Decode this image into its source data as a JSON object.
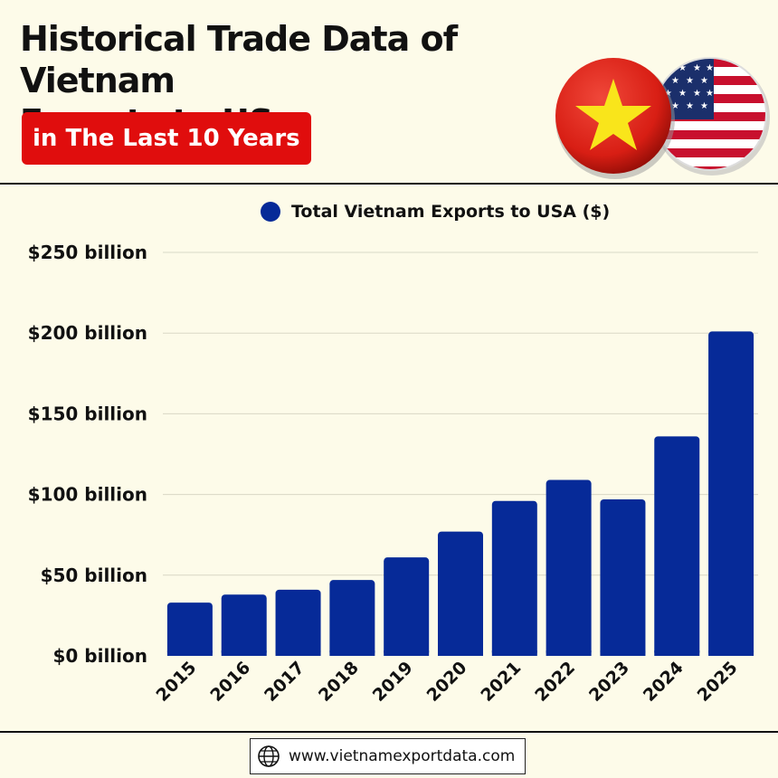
{
  "header": {
    "title_line1": "Historical Trade Data of Vietnam",
    "title_line2": "Exports to US",
    "subtitle": "in The Last 10 Years"
  },
  "flags": {
    "left": "vietnam-flag-icon",
    "right": "usa-flag-icon"
  },
  "colors": {
    "bar": "#062a98",
    "subtitle_bg": "#e00d0d",
    "background": "#fdfbe9"
  },
  "footer": {
    "icon": "globe-icon",
    "url": "www.vietnamexportdata.com"
  },
  "chart_data": {
    "type": "bar",
    "legend": "Total Vietnam Exports to USA ($)",
    "legend_placement": "top-center",
    "categories": [
      "2015",
      "2016",
      "2017",
      "2018",
      "2019",
      "2020",
      "2021",
      "2022",
      "2023",
      "2024",
      "2025"
    ],
    "series": [
      {
        "name": "Total Vietnam Exports to USA ($)",
        "values": [
          33,
          38,
          41,
          47,
          61,
          77,
          96,
          109,
          97,
          136,
          201
        ]
      }
    ],
    "value_unit": "billion USD",
    "ylim": [
      0,
      250
    ],
    "yticks": [
      0,
      50,
      100,
      150,
      200,
      250
    ],
    "ytick_labels": [
      "$0 billion",
      "$50 billion",
      "$100 billion",
      "$150 billion",
      "$200 billion",
      "$250 billion"
    ],
    "grid": true
  }
}
